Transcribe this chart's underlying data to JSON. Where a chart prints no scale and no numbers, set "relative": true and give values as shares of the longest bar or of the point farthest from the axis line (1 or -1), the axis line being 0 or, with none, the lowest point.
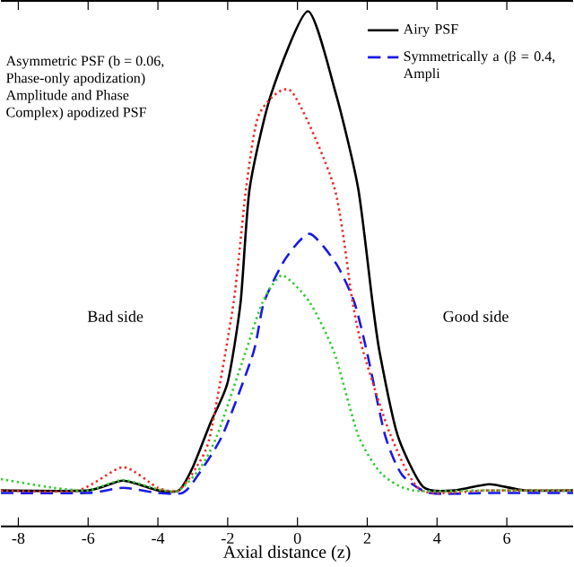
{
  "chart_data": {
    "type": "line",
    "relative": true,
    "xlabel": "Axial distance (z)",
    "xlim": [
      -8.5,
      7.9
    ],
    "xticks": [
      -8,
      -6,
      -4,
      -2,
      0,
      2,
      4,
      6
    ],
    "legend": "top right",
    "grid": false,
    "annotations": [
      "Bad side",
      "Good side",
      "Asymmetric PSF (b = 0.06,",
      "Phase-only apodization)",
      "Amplitude and Phase",
      "Complex) apodized PSF"
    ],
    "series": [
      {
        "name": "Airy PSF",
        "color": "#000000",
        "line_style": "solid",
        "x": [
          -8.5,
          -6,
          -5,
          -4,
          -3.4,
          -3,
          -2.5,
          -2,
          -1.63,
          -1.37,
          -0.75,
          0.3,
          1.1,
          1.74,
          2.15,
          2.36,
          2.87,
          3.6,
          4.5,
          5.5,
          6.5,
          7.9
        ],
        "values": [
          0.07,
          0.07,
          0.089,
          0.07,
          0.07,
          0.115,
          0.2,
          0.28,
          0.435,
          0.656,
          0.84,
          1.0,
          0.84,
          0.656,
          0.435,
          0.336,
          0.177,
          0.077,
          0.07,
          0.082,
          0.07,
          0.07
        ]
      },
      {
        "name": "Symmetrically a (β = 0.4, Ampli",
        "color": "#1a1ae6",
        "line_style": "dashed",
        "x": [
          -8.5,
          -6,
          -5,
          -4,
          -3.3,
          -2.93,
          -2.15,
          -1.27,
          -0.96,
          -0.34,
          0.35,
          1.11,
          1.63,
          2.0,
          2.51,
          3.0,
          3.8,
          5.5,
          7.9
        ],
        "values": [
          0.065,
          0.065,
          0.075,
          0.065,
          0.065,
          0.092,
          0.177,
          0.336,
          0.435,
          0.52,
          0.568,
          0.51,
          0.435,
          0.336,
          0.177,
          0.1,
          0.065,
          0.065,
          0.065
        ]
      },
      {
        "color": "#e8302a",
        "line_style": "dotted",
        "x": [
          -8.5,
          -6.3,
          -5,
          -4,
          -3.4,
          -2.9,
          -2.5,
          -1.83,
          -1.47,
          -1.1,
          -0.18,
          1.06,
          1.58,
          1.9,
          2.67,
          3.55,
          5.5,
          7.9
        ],
        "values": [
          0.07,
          0.07,
          0.115,
          0.075,
          0.07,
          0.115,
          0.177,
          0.435,
          0.657,
          0.8,
          0.845,
          0.657,
          0.435,
          0.336,
          0.177,
          0.07,
          0.07,
          0.07
        ]
      },
      {
        "color": "#33cc33",
        "line_style": "dotted",
        "x": [
          -8.5,
          -7,
          -6,
          -5,
          -4,
          -3.4,
          -2.77,
          -2.3,
          -1.5,
          -1.0,
          -0.44,
          0.35,
          1.06,
          1.74,
          2.4,
          3.3,
          5.5,
          7.9
        ],
        "values": [
          0.092,
          0.075,
          0.07,
          0.09,
          0.072,
          0.07,
          0.115,
          0.177,
          0.336,
          0.435,
          0.487,
          0.435,
          0.336,
          0.177,
          0.103,
          0.07,
          0.07,
          0.07
        ]
      }
    ]
  }
}
